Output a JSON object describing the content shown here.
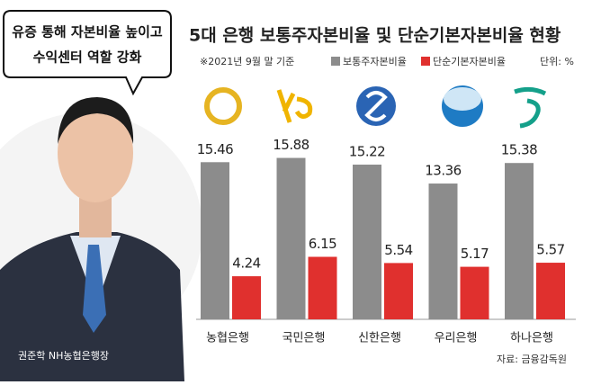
{
  "speech_bubble": [
    "유증 통해 자본비율 높이고",
    "수익센터 역할 강화"
  ],
  "caption": "권준학 NH농협은행장",
  "chart_data": {
    "type": "bar",
    "title": "5대 은행 보통주자본비율 및 단순기본자본비율 현황",
    "subtitle": "※2021년 9월 말 기준",
    "unit": "단위: %",
    "source": "자료: 금융감독원",
    "categories": [
      "농협은행",
      "국민은행",
      "신한은행",
      "우리은행",
      "하나은행"
    ],
    "series": [
      {
        "name": "보통주자본비율",
        "color": "#8c8c8c",
        "values": [
          15.46,
          15.88,
          15.22,
          13.36,
          15.38
        ]
      },
      {
        "name": "단순기본자본비율",
        "color": "#e0302e",
        "values": [
          4.24,
          6.15,
          5.54,
          5.17,
          5.57
        ]
      }
    ]
  }
}
